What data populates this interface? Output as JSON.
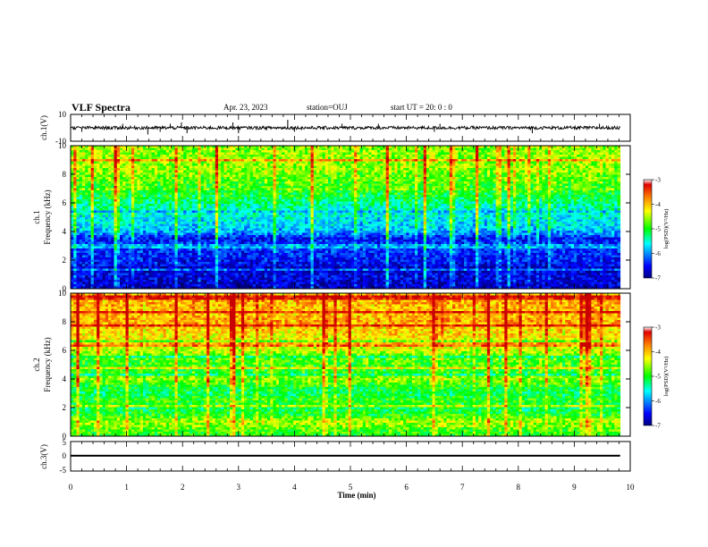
{
  "header": {
    "title": "VLF Spectra",
    "date": "Apr. 23, 2023",
    "station": "station=OUJ",
    "start": "start  UT =   20: 0  : 0"
  },
  "chart_data": [
    {
      "type": "line",
      "panel": "ch1-waveform",
      "ylabel": "ch.1(V)",
      "ylim": [
        -10,
        10
      ],
      "y_ticks": [
        "10",
        "-10"
      ],
      "xlim": [
        0,
        10
      ],
      "baseline": 0,
      "noise_amplitude": 1.2,
      "spikes": [
        {
          "x": 0.2,
          "y": -3
        },
        {
          "x": 0.93,
          "y": 3
        },
        {
          "x": 1.38,
          "y": -5
        },
        {
          "x": 1.6,
          "y": -3
        },
        {
          "x": 1.78,
          "y": 3
        },
        {
          "x": 1.98,
          "y": 4
        },
        {
          "x": 2.08,
          "y": -4
        },
        {
          "x": 2.9,
          "y": 4
        },
        {
          "x": 3.0,
          "y": -4
        },
        {
          "x": 3.88,
          "y": 6
        },
        {
          "x": 4.0,
          "y": -3
        },
        {
          "x": 4.85,
          "y": 3
        },
        {
          "x": 5.5,
          "y": 3
        },
        {
          "x": 6.5,
          "y": -3
        },
        {
          "x": 6.6,
          "y": 3
        },
        {
          "x": 8.25,
          "y": -4
        },
        {
          "x": 9.45,
          "y": 3
        }
      ]
    },
    {
      "type": "heatmap",
      "panel": "ch1-spectrogram",
      "ylabel": "ch.1\nFrequency (kHz)",
      "ylim": [
        0,
        10
      ],
      "y_ticks": [
        "0",
        "2",
        "4",
        "6",
        "8",
        "10"
      ],
      "xlim": [
        0,
        10
      ],
      "data_end_min": 9.82,
      "frequency_kHz": [
        0,
        0.5,
        1,
        1.5,
        2,
        2.5,
        3,
        3.5,
        4,
        4.5,
        5,
        5.5,
        6,
        6.5,
        7,
        7.5,
        8,
        8.5,
        9,
        9.5,
        10
      ],
      "mean_log_psd": [
        -6.8,
        -6.7,
        -6.6,
        -6.6,
        -6.5,
        -6.4,
        -6.3,
        -6.5,
        -5.9,
        -5.7,
        -5.6,
        -5.5,
        -5.3,
        -5.1,
        -4.9,
        -4.8,
        -4.7,
        -4.6,
        -4.6,
        -4.6,
        -4.6
      ],
      "colorscale_range": [
        -7,
        -3
      ]
    },
    {
      "type": "heatmap",
      "panel": "ch2-spectrogram",
      "ylabel": "ch.2\nFrequency (kHz)",
      "ylim": [
        0,
        10
      ],
      "y_ticks": [
        "0",
        "2",
        "4",
        "6",
        "8",
        "10"
      ],
      "xlim": [
        0,
        10
      ],
      "data_end_min": 9.82,
      "frequency_kHz": [
        0,
        0.5,
        1,
        1.5,
        2,
        2.5,
        3,
        3.5,
        4,
        4.5,
        5,
        5.5,
        6,
        6.5,
        7,
        7.5,
        8,
        8.5,
        9,
        9.5,
        10
      ],
      "mean_log_psd": [
        -5.0,
        -4.8,
        -4.5,
        -5.0,
        -5.2,
        -4.9,
        -5.2,
        -5.0,
        -4.6,
        -5.0,
        -4.9,
        -4.8,
        -4.5,
        -4.3,
        -4.2,
        -4.1,
        -3.9,
        -4.0,
        -4.0,
        -3.9,
        -4.0
      ],
      "colorscale_range": [
        -7,
        -3
      ]
    },
    {
      "type": "line",
      "panel": "ch3-waveform",
      "ylabel": "ch.3(V)",
      "ylim": [
        -5,
        5
      ],
      "y_ticks": [
        "5",
        "0",
        "-5"
      ],
      "xlim": [
        0,
        10
      ],
      "baseline": 0.2,
      "line_thickness_V": 0.6
    }
  ],
  "xaxis": {
    "label": "Time (min)",
    "ticks": [
      "0",
      "1",
      "2",
      "3",
      "4",
      "5",
      "6",
      "7",
      "8",
      "9",
      "10"
    ]
  },
  "colorbar": {
    "label": "log(PSD)(V²/Hz)",
    "ticks": [
      "-3",
      "-4",
      "-5",
      "-6",
      "-7"
    ],
    "colors": [
      "#e00000",
      "#ff8000",
      "#ffff00",
      "#00ff00",
      "#00ffff",
      "#0000ff",
      "#000080"
    ]
  }
}
